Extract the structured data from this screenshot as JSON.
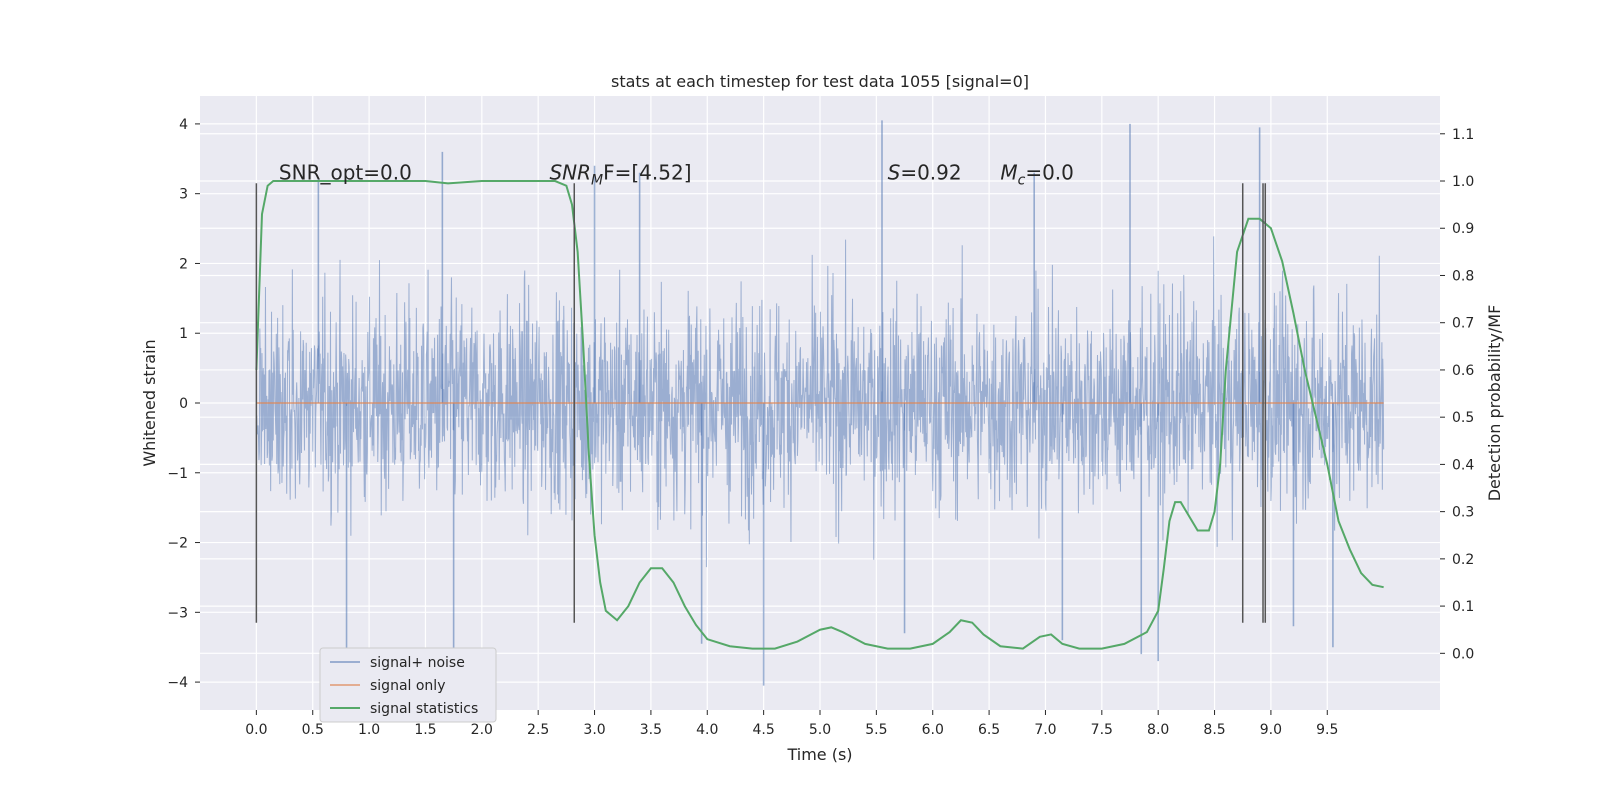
{
  "chart_data": {
    "type": "line",
    "title": "stats at each timestep for test data 1055 [signal=0]",
    "xlabel": "Time (s)",
    "ylabel": "Whitened strain",
    "y2label": "Detection probability/MF",
    "xlim": [
      -0.5,
      10.5
    ],
    "ylim": [
      -4.4,
      4.4
    ],
    "y2lim": [
      -0.12,
      1.18
    ],
    "x_ticks": [
      "0.0",
      "0.5",
      "1.0",
      "1.5",
      "2.0",
      "2.5",
      "3.0",
      "3.5",
      "4.0",
      "4.5",
      "5.0",
      "5.5",
      "6.0",
      "6.5",
      "7.0",
      "7.5",
      "8.0",
      "8.5",
      "9.0",
      "9.5"
    ],
    "y_ticks": [
      "4",
      "3",
      "2",
      "1",
      "0",
      "−1",
      "−2",
      "−3",
      "−4"
    ],
    "y2_ticks": [
      "1.1",
      "1.0",
      "0.9",
      "0.8",
      "0.7",
      "0.6",
      "0.5",
      "0.4",
      "0.3",
      "0.2",
      "0.1",
      "0.0"
    ],
    "grid": true,
    "legend_position": "lower-left",
    "annotations": [
      {
        "text": "SNR_opt=0.0",
        "x": 0.2,
        "y": 3.2
      },
      {
        "text_main": "SNR",
        "text_sub": "M",
        "text_tail": "F=[4.52]",
        "x": 2.6,
        "y": 3.2
      },
      {
        "text_main": "S",
        "text_sub": "",
        "text_tail": "=0.92",
        "x": 5.6,
        "y": 3.2
      },
      {
        "text_main": "M",
        "text_sub": "c",
        "text_tail": "=0.0",
        "x": 6.6,
        "y": 3.2
      }
    ],
    "vertical_lines": [
      {
        "x": 0.0,
        "y": [
          -3.15,
          3.15
        ]
      },
      {
        "x": 2.82,
        "y": [
          -3.15,
          3.15
        ]
      },
      {
        "x": 8.75,
        "y": [
          -3.15,
          3.15
        ]
      },
      {
        "x": 8.93,
        "y": [
          -3.15,
          3.15
        ]
      },
      {
        "x": 8.95,
        "y": [
          -3.15,
          3.15
        ]
      }
    ],
    "series": [
      {
        "name": "signal+ noise",
        "color": "#4c72b0",
        "kind": "noise",
        "x_range": [
          0.0,
          10.0
        ],
        "envelope": 3.0,
        "spikes": [
          {
            "x": 0.55,
            "y": 3.2
          },
          {
            "x": 0.8,
            "y": -3.6
          },
          {
            "x": 1.65,
            "y": 3.6
          },
          {
            "x": 1.75,
            "y": -3.55
          },
          {
            "x": 3.0,
            "y": 3.4
          },
          {
            "x": 3.4,
            "y": 3.3
          },
          {
            "x": 3.95,
            "y": -3.45
          },
          {
            "x": 4.5,
            "y": -4.05
          },
          {
            "x": 5.55,
            "y": 4.05
          },
          {
            "x": 5.75,
            "y": -3.3
          },
          {
            "x": 6.9,
            "y": 3.3
          },
          {
            "x": 7.15,
            "y": -3.4
          },
          {
            "x": 7.75,
            "y": 4.0
          },
          {
            "x": 7.85,
            "y": -3.6
          },
          {
            "x": 8.0,
            "y": -3.7
          },
          {
            "x": 8.9,
            "y": 3.95
          },
          {
            "x": 9.55,
            "y": -3.5
          },
          {
            "x": 9.2,
            "y": -3.2
          }
        ]
      },
      {
        "name": "signal only",
        "color": "#dd8452",
        "x": [
          0.0,
          10.0
        ],
        "y": [
          0.0,
          0.0
        ]
      },
      {
        "name": "signal statistics",
        "color": "#55a868",
        "axis": "right",
        "x": [
          0.0,
          0.05,
          0.1,
          0.15,
          0.2,
          0.3,
          0.5,
          1.0,
          1.5,
          1.7,
          2.0,
          2.5,
          2.65,
          2.75,
          2.8,
          2.85,
          2.9,
          2.95,
          3.0,
          3.05,
          3.1,
          3.2,
          3.3,
          3.4,
          3.5,
          3.6,
          3.7,
          3.8,
          3.9,
          4.0,
          4.2,
          4.4,
          4.6,
          4.8,
          5.0,
          5.1,
          5.2,
          5.4,
          5.6,
          5.8,
          6.0,
          6.15,
          6.25,
          6.35,
          6.45,
          6.6,
          6.8,
          6.95,
          7.05,
          7.15,
          7.3,
          7.5,
          7.7,
          7.9,
          8.0,
          8.05,
          8.1,
          8.15,
          8.2,
          8.25,
          8.35,
          8.45,
          8.5,
          8.55,
          8.6,
          8.7,
          8.8,
          8.9,
          9.0,
          9.1,
          9.2,
          9.3,
          9.4,
          9.5,
          9.6,
          9.7,
          9.8,
          9.9,
          10.0
        ],
        "y": [
          0.6,
          0.93,
          0.99,
          1.0,
          1.0,
          1.0,
          1.0,
          1.0,
          1.0,
          0.995,
          1.0,
          1.0,
          1.0,
          0.99,
          0.95,
          0.85,
          0.65,
          0.42,
          0.25,
          0.15,
          0.09,
          0.07,
          0.1,
          0.15,
          0.18,
          0.18,
          0.15,
          0.1,
          0.06,
          0.03,
          0.015,
          0.01,
          0.01,
          0.025,
          0.05,
          0.055,
          0.045,
          0.02,
          0.01,
          0.01,
          0.02,
          0.045,
          0.07,
          0.065,
          0.04,
          0.015,
          0.01,
          0.035,
          0.04,
          0.02,
          0.01,
          0.01,
          0.02,
          0.045,
          0.09,
          0.18,
          0.28,
          0.32,
          0.32,
          0.3,
          0.26,
          0.26,
          0.3,
          0.4,
          0.6,
          0.85,
          0.92,
          0.92,
          0.9,
          0.83,
          0.72,
          0.6,
          0.5,
          0.4,
          0.28,
          0.22,
          0.17,
          0.145,
          0.14
        ]
      }
    ]
  }
}
